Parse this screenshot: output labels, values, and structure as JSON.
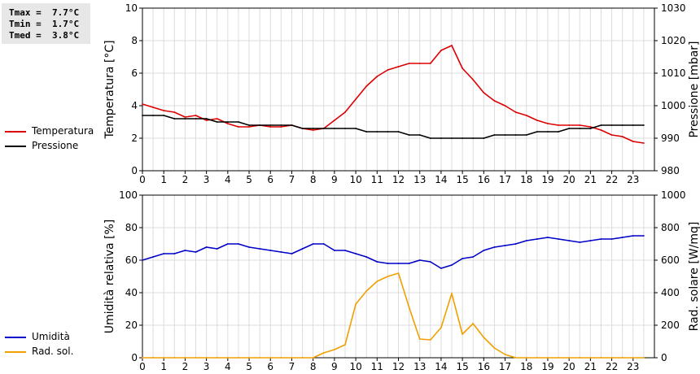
{
  "stats": {
    "tmax": "Tmax =  7.7°C",
    "tmin": "Tmin =  1.7°C",
    "tmed": "Tmed =  3.8°C"
  },
  "colors": {
    "temperature": "#dd0000",
    "pressure": "#000000",
    "humidity": "#0000c8",
    "solar": "#f0a000",
    "grid": "#dcdcdc"
  },
  "chart_data": [
    {
      "type": "line",
      "ylabel": "Temperatura [°C]",
      "y2label": "Pressione [mbar]",
      "xlim": [
        0,
        24
      ],
      "ylim": [
        0,
        10
      ],
      "y2lim": [
        980,
        1030
      ],
      "y_ticks": [
        "0",
        "2",
        "4",
        "6",
        "8",
        "10"
      ],
      "y2_ticks": [
        "980",
        "990",
        "1000",
        "1010",
        "1020",
        "1030"
      ],
      "x_ticks": [
        "0",
        "1",
        "2",
        "3",
        "4",
        "5",
        "6",
        "7",
        "8",
        "9",
        "10",
        "11",
        "12",
        "13",
        "14",
        "15",
        "16",
        "17",
        "18",
        "19",
        "20",
        "21",
        "22",
        "23"
      ],
      "grid": true,
      "series": [
        {
          "name": "Temperatura",
          "axis": "left",
          "x": [
            0,
            0.5,
            1,
            1.5,
            2,
            2.5,
            3,
            3.5,
            4,
            4.5,
            5,
            5.5,
            6,
            6.5,
            7,
            7.5,
            8,
            8.5,
            9,
            9.5,
            10,
            10.5,
            11,
            11.5,
            12,
            12.5,
            13,
            13.5,
            14,
            14.5,
            15,
            15.5,
            16,
            16.5,
            17,
            17.5,
            18,
            18.5,
            19,
            19.5,
            20,
            20.5,
            21,
            21.5,
            22,
            22.5,
            23,
            23.5
          ],
          "y": [
            4.1,
            3.9,
            3.7,
            3.6,
            3.3,
            3.4,
            3.1,
            3.2,
            2.9,
            2.7,
            2.7,
            2.8,
            2.7,
            2.7,
            2.8,
            2.6,
            2.5,
            2.6,
            3.1,
            3.6,
            4.4,
            5.2,
            5.8,
            6.2,
            6.4,
            6.6,
            6.6,
            6.6,
            7.4,
            7.7,
            6.3,
            5.6,
            4.8,
            4.3,
            4.0,
            3.6,
            3.4,
            3.1,
            2.9,
            2.8,
            2.8,
            2.8,
            2.7,
            2.5,
            2.2,
            2.1,
            1.8,
            1.7
          ]
        },
        {
          "name": "Pressione",
          "axis": "right",
          "x": [
            0,
            0.5,
            1,
            1.5,
            2,
            2.5,
            3,
            3.5,
            4,
            4.5,
            5,
            5.5,
            6,
            6.5,
            7,
            7.5,
            8,
            8.5,
            9,
            9.5,
            10,
            10.5,
            11,
            11.5,
            12,
            12.5,
            13,
            13.5,
            14,
            14.5,
            15,
            15.5,
            16,
            16.5,
            17,
            17.5,
            18,
            18.5,
            19,
            19.5,
            20,
            20.5,
            21,
            21.5,
            22,
            22.5,
            23,
            23.5
          ],
          "y": [
            997,
            997,
            997,
            996,
            996,
            996,
            996,
            995,
            995,
            995,
            994,
            994,
            994,
            994,
            994,
            993,
            993,
            993,
            993,
            993,
            993,
            992,
            992,
            992,
            992,
            991,
            991,
            990,
            990,
            990,
            990,
            990,
            990,
            991,
            991,
            991,
            991,
            992,
            992,
            992,
            993,
            993,
            993,
            994,
            994,
            994,
            994,
            994
          ]
        }
      ]
    },
    {
      "type": "line",
      "ylabel": "Umidità relativa [%]",
      "y2label": "Rad. solare [W/mq]",
      "xlim": [
        0,
        24
      ],
      "ylim": [
        0,
        100
      ],
      "y2lim": [
        0,
        1000
      ],
      "y_ticks": [
        "0",
        "20",
        "40",
        "60",
        "80",
        "100"
      ],
      "y2_ticks": [
        "0",
        "200",
        "400",
        "600",
        "800",
        "1000"
      ],
      "x_ticks": [
        "0",
        "1",
        "2",
        "3",
        "4",
        "5",
        "6",
        "7",
        "8",
        "9",
        "10",
        "11",
        "12",
        "13",
        "14",
        "15",
        "16",
        "17",
        "18",
        "19",
        "20",
        "21",
        "22",
        "23"
      ],
      "grid": true,
      "series": [
        {
          "name": "Umidità",
          "axis": "left",
          "x": [
            0,
            0.5,
            1,
            1.5,
            2,
            2.5,
            3,
            3.5,
            4,
            4.5,
            5,
            5.5,
            6,
            6.5,
            7,
            7.5,
            8,
            8.5,
            9,
            9.5,
            10,
            10.5,
            11,
            11.5,
            12,
            12.5,
            13,
            13.5,
            14,
            14.5,
            15,
            15.5,
            16,
            16.5,
            17,
            17.5,
            18,
            18.5,
            19,
            19.5,
            20,
            20.5,
            21,
            21.5,
            22,
            22.5,
            23,
            23.5
          ],
          "y": [
            60,
            62,
            64,
            64,
            66,
            65,
            68,
            67,
            70,
            70,
            68,
            67,
            66,
            65,
            64,
            67,
            70,
            70,
            66,
            66,
            64,
            62,
            59,
            58,
            58,
            58,
            60,
            59,
            55,
            57,
            61,
            62,
            66,
            68,
            69,
            70,
            72,
            73,
            74,
            73,
            72,
            71,
            72,
            73,
            73,
            74,
            75,
            75
          ]
        },
        {
          "name": "Rad. sol.",
          "axis": "right",
          "x": [
            0,
            0.5,
            1,
            1.5,
            2,
            2.5,
            3,
            3.5,
            4,
            4.5,
            5,
            5.5,
            6,
            6.5,
            7,
            7.5,
            8,
            8.5,
            9,
            9.5,
            10,
            10.5,
            11,
            11.5,
            12,
            12.5,
            13,
            13.5,
            14,
            14.5,
            15,
            15.5,
            16,
            16.5,
            17,
            17.5,
            18,
            18.5,
            19,
            19.5,
            20,
            20.5,
            21,
            21.5,
            22,
            22.5,
            23,
            23.5
          ],
          "y": [
            0,
            0,
            0,
            0,
            0,
            0,
            0,
            0,
            0,
            0,
            0,
            0,
            0,
            0,
            0,
            0,
            0,
            30,
            50,
            80,
            330,
            410,
            470,
            500,
            520,
            310,
            115,
            110,
            185,
            395,
            145,
            210,
            125,
            60,
            20,
            0,
            0,
            0,
            0,
            0,
            0,
            0,
            0,
            0,
            0,
            0,
            0,
            0
          ]
        }
      ]
    }
  ]
}
